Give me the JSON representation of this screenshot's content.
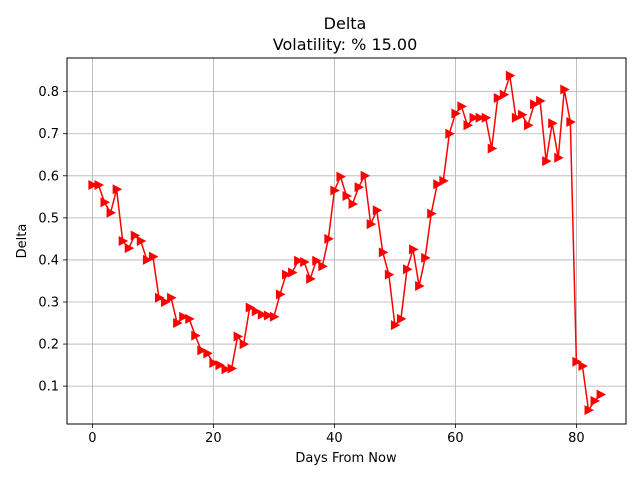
{
  "chart_data": {
    "type": "line",
    "title": "Delta",
    "subtitle": "Volatility: % 15.00",
    "xlabel": "Days From Now",
    "ylabel": "Delta",
    "xlim": [
      -4.2,
      88.2
    ],
    "ylim": [
      0.01,
      0.88
    ],
    "xticks": [
      0,
      20,
      40,
      60,
      80
    ],
    "yticks": [
      0.1,
      0.2,
      0.3,
      0.4,
      0.5,
      0.6,
      0.7,
      0.8
    ],
    "grid": true,
    "marker": "triangle-right",
    "line_color": "#ff0000",
    "x": [
      0,
      1,
      2,
      3,
      4,
      5,
      6,
      7,
      8,
      9,
      10,
      11,
      12,
      13,
      14,
      15,
      16,
      17,
      18,
      19,
      20,
      21,
      22,
      23,
      24,
      25,
      26,
      27,
      28,
      29,
      30,
      31,
      32,
      33,
      34,
      35,
      36,
      37,
      38,
      39,
      40,
      41,
      42,
      43,
      44,
      45,
      46,
      47,
      48,
      49,
      50,
      51,
      52,
      53,
      54,
      55,
      56,
      57,
      58,
      59,
      60,
      61,
      62,
      63,
      64,
      65,
      66,
      67,
      68,
      69,
      70,
      71,
      72,
      73,
      74,
      75,
      76,
      77,
      78,
      79,
      80,
      81,
      82,
      83,
      84
    ],
    "series": [
      {
        "values": [
          0.578,
          0.578,
          0.537,
          0.512,
          0.568,
          0.445,
          0.428,
          0.458,
          0.445,
          0.4,
          0.408,
          0.31,
          0.3,
          0.31,
          0.25,
          0.265,
          0.26,
          0.22,
          0.185,
          0.178,
          0.155,
          0.15,
          0.14,
          0.142,
          0.218,
          0.2,
          0.287,
          0.278,
          0.27,
          0.268,
          0.265,
          0.318,
          0.365,
          0.37,
          0.398,
          0.395,
          0.355,
          0.398,
          0.385,
          0.45,
          0.565,
          0.598,
          0.552,
          0.533,
          0.573,
          0.6,
          0.485,
          0.518,
          0.418,
          0.365,
          0.245,
          0.26,
          0.378,
          0.425,
          0.338,
          0.405,
          0.51,
          0.58,
          0.588,
          0.7,
          0.748,
          0.765,
          0.72,
          0.738,
          0.738,
          0.738,
          0.665,
          0.785,
          0.793,
          0.838,
          0.738,
          0.745,
          0.72,
          0.77,
          0.778,
          0.635,
          0.725,
          0.643,
          0.805,
          0.728,
          0.158,
          0.148,
          0.043,
          0.065,
          0.08
        ]
      }
    ]
  }
}
